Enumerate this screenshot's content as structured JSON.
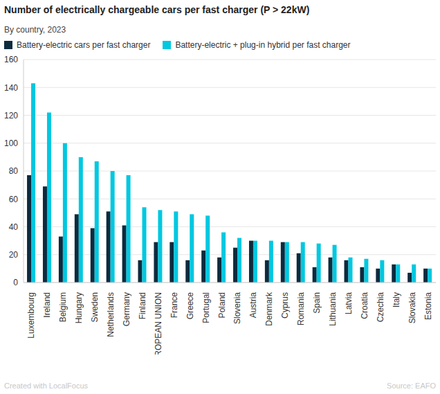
{
  "chart_data": {
    "type": "bar",
    "title": "Number of electrically chargeable cars per fast charger (P > 22kW)",
    "subtitle": "By country, 2023",
    "annotations": [
      "Created with LocalFocus",
      "Source: EAFO"
    ],
    "categories": [
      "Luxembourg",
      "Ireland",
      "Belgium",
      "Hungary",
      "Sweden",
      "Netherlands",
      "Germany",
      "Finland",
      "EUROPEAN UNION",
      "France",
      "Greece",
      "Portugal",
      "Poland",
      "Slovenia",
      "Austria",
      "Denmark",
      "Cyprus",
      "Romania",
      "Spain",
      "Lithuania",
      "Latvia",
      "Croatia",
      "Czechia",
      "Italy",
      "Slovakia",
      "Estonia"
    ],
    "series": [
      {
        "name": "Battery-electric cars per fast charger",
        "color": "#0d2b3e",
        "values": [
          77,
          69,
          33,
          49,
          39,
          51,
          41,
          16,
          29,
          29,
          16,
          23,
          18,
          25,
          30,
          16,
          29,
          21,
          11,
          18,
          16,
          11,
          10,
          13,
          7,
          10
        ]
      },
      {
        "name": "Battery-electric + plug-in hybrid per fast charger",
        "color": "#00c8e0",
        "values": [
          143,
          122,
          100,
          90,
          87,
          80,
          77,
          54,
          52,
          51,
          49,
          48,
          36,
          32,
          30,
          30,
          29,
          29,
          28,
          27,
          18,
          17,
          16,
          13,
          13,
          10
        ]
      }
    ],
    "ylim": [
      0,
      160
    ],
    "yticks": [
      0,
      20,
      40,
      60,
      80,
      100,
      120,
      140,
      160
    ],
    "grid": true,
    "legend": "top-left"
  }
}
